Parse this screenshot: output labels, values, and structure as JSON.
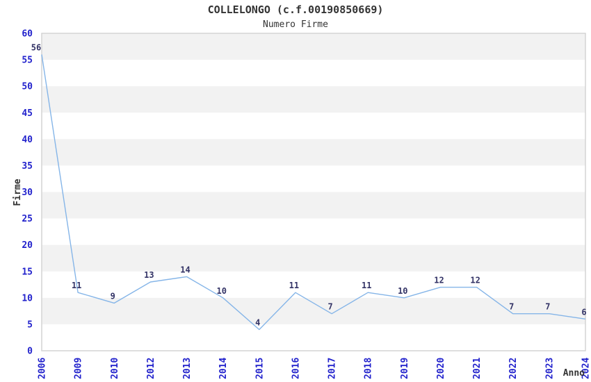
{
  "header": {
    "title": "COLLELONGO (c.f.00190850669)",
    "subtitle": "Numero Firme"
  },
  "chart_data": {
    "type": "line",
    "title": "COLLELONGO (c.f.00190850669)",
    "subtitle": "Numero Firme",
    "xlabel": "Anno",
    "ylabel": "Firme",
    "categories": [
      "2006",
      "2009",
      "2010",
      "2012",
      "2013",
      "2014",
      "2015",
      "2016",
      "2017",
      "2018",
      "2019",
      "2020",
      "2021",
      "2022",
      "2023",
      "2024"
    ],
    "values": [
      56,
      11,
      9,
      13,
      14,
      10,
      4,
      11,
      7,
      11,
      10,
      12,
      12,
      7,
      7,
      6
    ],
    "ylim": [
      0,
      60
    ],
    "ytick_interval": 5,
    "grid": "alternating-horizontal-bands",
    "legend": "none",
    "colors": {
      "line": "#85b5e8",
      "value_labels": "#333366",
      "axis_ticks": "#2222cc",
      "axis_titles": "#333333",
      "title": "#333333",
      "band": "#f2f2f2",
      "plot_border": "#d4d4d4",
      "background": "#ffffff"
    }
  }
}
